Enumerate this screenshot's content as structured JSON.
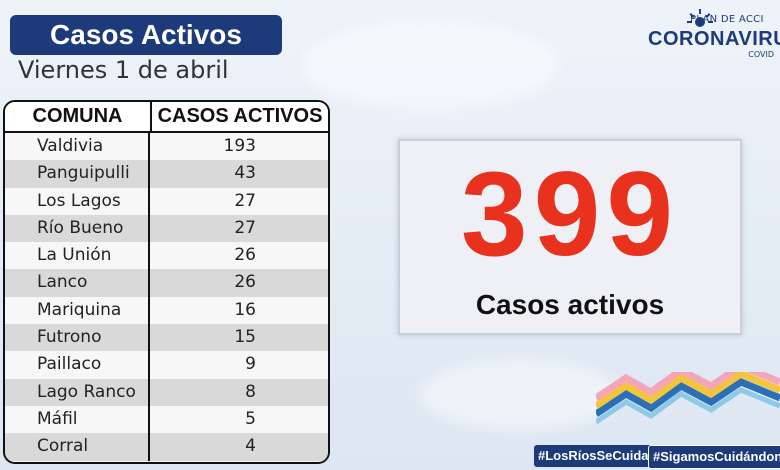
{
  "header": {
    "title": "Casos Activos",
    "date": "Viernes 1 de abril"
  },
  "logo": {
    "plan": "PLAN DE ACCI",
    "name": "CORONAVIRU",
    "sub": "COVID"
  },
  "table": {
    "headers": [
      "COMUNA",
      "CASOS ACTIVOS"
    ],
    "rows": [
      {
        "comuna": "Valdivia",
        "casos": "193"
      },
      {
        "comuna": "Panguipulli",
        "casos": "43"
      },
      {
        "comuna": "Los Lagos",
        "casos": "27"
      },
      {
        "comuna": "Río Bueno",
        "casos": "27"
      },
      {
        "comuna": "La Unión",
        "casos": "26"
      },
      {
        "comuna": "Lanco",
        "casos": "26"
      },
      {
        "comuna": "Mariquina",
        "casos": "16"
      },
      {
        "comuna": "Futrono",
        "casos": "15"
      },
      {
        "comuna": "Paillaco",
        "casos": "9"
      },
      {
        "comuna": "Lago Ranco",
        "casos": "8"
      },
      {
        "comuna": "Máfil",
        "casos": "5"
      },
      {
        "comuna": "Corral",
        "casos": "4"
      }
    ]
  },
  "total": {
    "value": "399",
    "label": "Casos activos"
  },
  "hashtags": [
    "#LosRíosSeCuida",
    "#SigamosCuidándon"
  ],
  "colors": {
    "navy": "#1d3b7a",
    "accent_red": "#e8321e"
  }
}
